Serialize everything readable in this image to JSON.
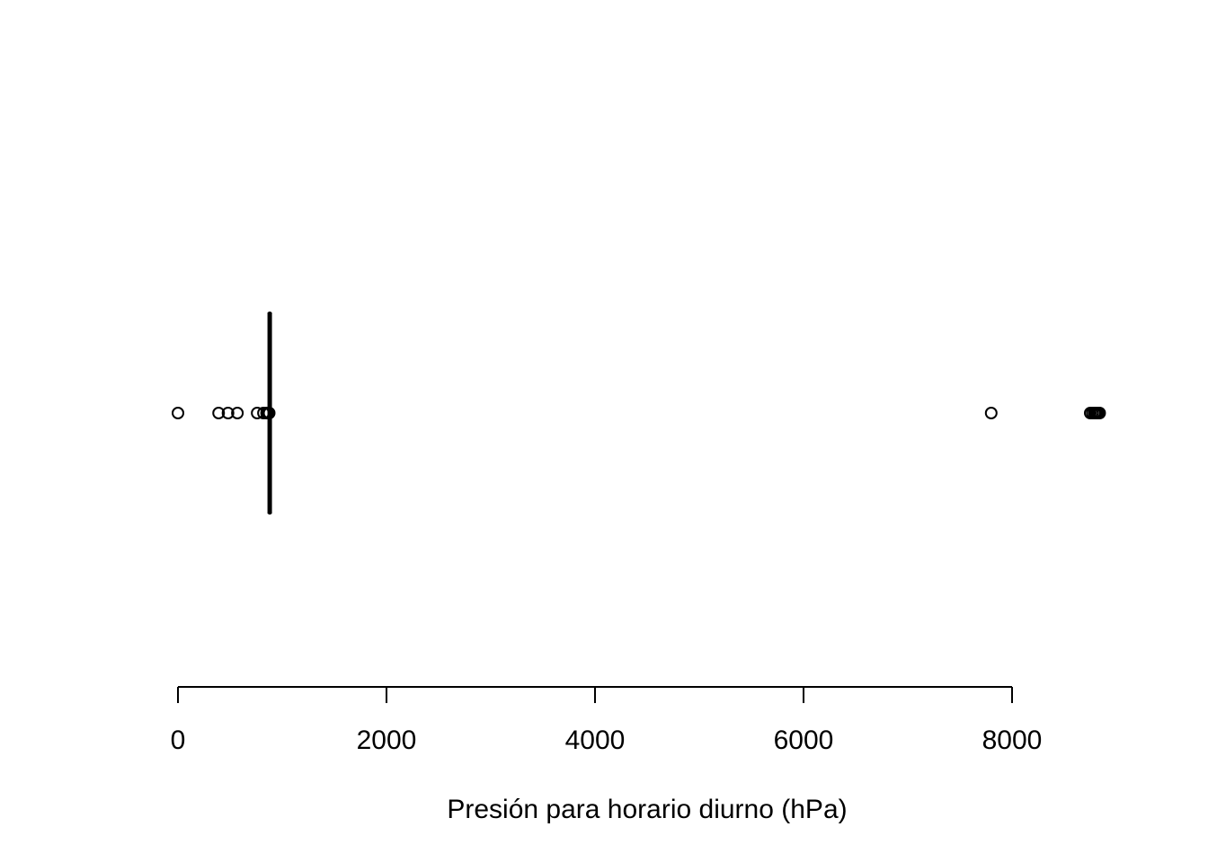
{
  "chart_data": {
    "type": "boxplot",
    "orientation": "horizontal",
    "xlabel": "Presión para horario diurno (hPa)",
    "xlim": [
      0,
      8800
    ],
    "x_ticks": [
      0,
      2000,
      4000,
      6000,
      8000
    ],
    "x_tick_labels": [
      "0",
      "2000",
      "4000",
      "6000",
      "8000"
    ],
    "grid": false,
    "box": {
      "q1": 875,
      "median": 880,
      "q3": 885
    },
    "outliers": [
      0,
      390,
      480,
      570,
      760,
      820,
      850,
      860,
      875,
      7800,
      8750,
      8770,
      8790,
      8800,
      8810,
      8820,
      8830,
      8840
    ],
    "colors": {
      "stroke": "#000000",
      "background": "#ffffff"
    }
  }
}
